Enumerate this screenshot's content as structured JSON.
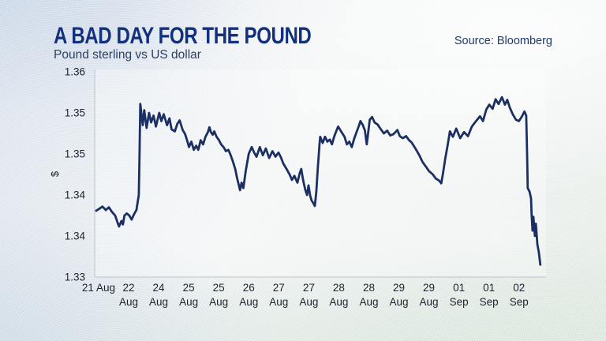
{
  "chart_data": {
    "type": "line",
    "title": "A BAD DAY FOR THE POUND",
    "subtitle": "Pound sterling vs US dollar",
    "source": "Source: Bloomberg",
    "ylabel": "$",
    "xlabel": "",
    "legend": "none",
    "grid": "off",
    "ylim": [
      1.33,
      1.36
    ],
    "xlim": [
      -0.13,
      14.9
    ],
    "y_ticks": [
      {
        "value": 1.36,
        "label": "1.36"
      },
      {
        "value": 1.354,
        "label": "1.35"
      },
      {
        "value": 1.348,
        "label": "1.35"
      },
      {
        "value": 1.342,
        "label": "1.34"
      },
      {
        "value": 1.336,
        "label": "1.34"
      },
      {
        "value": 1.33,
        "label": "1.33"
      }
    ],
    "x_tick_labels": [
      {
        "line1": "21 Aug",
        "line2": ""
      },
      {
        "line1": "22",
        "line2": "Aug"
      },
      {
        "line1": "24",
        "line2": "Aug"
      },
      {
        "line1": "25",
        "line2": "Aug"
      },
      {
        "line1": "25",
        "line2": "Aug"
      },
      {
        "line1": "26",
        "line2": "Aug"
      },
      {
        "line1": "27",
        "line2": "Aug"
      },
      {
        "line1": "27",
        "line2": "Aug"
      },
      {
        "line1": "28",
        "line2": "Aug"
      },
      {
        "line1": "28",
        "line2": "Aug"
      },
      {
        "line1": "29",
        "line2": "Aug"
      },
      {
        "line1": "29",
        "line2": "Aug"
      },
      {
        "line1": "01",
        "line2": "Sep"
      },
      {
        "line1": "01",
        "line2": "Sep"
      },
      {
        "line1": "02",
        "line2": "Sep"
      }
    ],
    "series": [
      {
        "name": "Pound sterling vs US dollar (GBP/USD $)",
        "color": "#1c2f63",
        "points": [
          [
            -0.08,
            1.3397
          ],
          [
            0.03,
            1.34
          ],
          [
            0.13,
            1.3403
          ],
          [
            0.24,
            1.3398
          ],
          [
            0.34,
            1.3402
          ],
          [
            0.45,
            1.3395
          ],
          [
            0.55,
            1.339
          ],
          [
            0.63,
            1.338
          ],
          [
            0.68,
            1.3374
          ],
          [
            0.76,
            1.3382
          ],
          [
            0.81,
            1.3377
          ],
          [
            0.86,
            1.339
          ],
          [
            0.94,
            1.3393
          ],
          [
            1.02,
            1.339
          ],
          [
            1.1,
            1.3384
          ],
          [
            1.18,
            1.3392
          ],
          [
            1.26,
            1.3398
          ],
          [
            1.34,
            1.342
          ],
          [
            1.36,
            1.347
          ],
          [
            1.39,
            1.3553
          ],
          [
            1.47,
            1.3522
          ],
          [
            1.52,
            1.3544
          ],
          [
            1.6,
            1.3518
          ],
          [
            1.68,
            1.354
          ],
          [
            1.75,
            1.3526
          ],
          [
            1.83,
            1.3536
          ],
          [
            1.91,
            1.352
          ],
          [
            2.02,
            1.354
          ],
          [
            2.09,
            1.3528
          ],
          [
            2.17,
            1.3538
          ],
          [
            2.28,
            1.3522
          ],
          [
            2.36,
            1.3532
          ],
          [
            2.43,
            1.3516
          ],
          [
            2.54,
            1.3513
          ],
          [
            2.62,
            1.3524
          ],
          [
            2.7,
            1.3529
          ],
          [
            2.8,
            1.3515
          ],
          [
            2.88,
            1.3509
          ],
          [
            2.96,
            1.3498
          ],
          [
            3.01,
            1.349
          ],
          [
            3.09,
            1.3498
          ],
          [
            3.17,
            1.3486
          ],
          [
            3.25,
            1.3492
          ],
          [
            3.32,
            1.3486
          ],
          [
            3.4,
            1.35
          ],
          [
            3.48,
            1.3494
          ],
          [
            3.56,
            1.3505
          ],
          [
            3.64,
            1.3512
          ],
          [
            3.69,
            1.3519
          ],
          [
            3.74,
            1.3512
          ],
          [
            3.8,
            1.3508
          ],
          [
            3.85,
            1.3513
          ],
          [
            3.93,
            1.3505
          ],
          [
            4.01,
            1.35
          ],
          [
            4.08,
            1.3494
          ],
          [
            4.16,
            1.349
          ],
          [
            4.24,
            1.3484
          ],
          [
            4.32,
            1.3486
          ],
          [
            4.4,
            1.3478
          ],
          [
            4.48,
            1.3468
          ],
          [
            4.55,
            1.3458
          ],
          [
            4.61,
            1.3445
          ],
          [
            4.66,
            1.3436
          ],
          [
            4.71,
            1.3427
          ],
          [
            4.76,
            1.3438
          ],
          [
            4.82,
            1.343
          ],
          [
            4.9,
            1.3455
          ],
          [
            5.0,
            1.348
          ],
          [
            5.1,
            1.349
          ],
          [
            5.18,
            1.3482
          ],
          [
            5.26,
            1.3476
          ],
          [
            5.37,
            1.349
          ],
          [
            5.47,
            1.3478
          ],
          [
            5.57,
            1.3488
          ],
          [
            5.68,
            1.3474
          ],
          [
            5.79,
            1.3484
          ],
          [
            5.89,
            1.3476
          ],
          [
            5.99,
            1.3482
          ],
          [
            6.07,
            1.3475
          ],
          [
            6.15,
            1.3466
          ],
          [
            6.26,
            1.3458
          ],
          [
            6.36,
            1.345
          ],
          [
            6.44,
            1.3442
          ],
          [
            6.52,
            1.3448
          ],
          [
            6.62,
            1.3438
          ],
          [
            6.7,
            1.3452
          ],
          [
            6.75,
            1.3458
          ],
          [
            6.81,
            1.3442
          ],
          [
            6.88,
            1.3428
          ],
          [
            6.94,
            1.342
          ],
          [
            6.99,
            1.3434
          ],
          [
            7.04,
            1.342
          ],
          [
            7.09,
            1.3412
          ],
          [
            7.15,
            1.3408
          ],
          [
            7.2,
            1.3404
          ],
          [
            7.25,
            1.3425
          ],
          [
            7.3,
            1.346
          ],
          [
            7.36,
            1.3495
          ],
          [
            7.38,
            1.3505
          ],
          [
            7.46,
            1.3496
          ],
          [
            7.54,
            1.3505
          ],
          [
            7.62,
            1.3498
          ],
          [
            7.7,
            1.3501
          ],
          [
            7.77,
            1.3494
          ],
          [
            7.85,
            1.3506
          ],
          [
            7.93,
            1.3515
          ],
          [
            7.98,
            1.352
          ],
          [
            8.09,
            1.3512
          ],
          [
            8.19,
            1.3505
          ],
          [
            8.27,
            1.3494
          ],
          [
            8.35,
            1.3498
          ],
          [
            8.43,
            1.349
          ],
          [
            8.51,
            1.3502
          ],
          [
            8.59,
            1.3512
          ],
          [
            8.66,
            1.352
          ],
          [
            8.72,
            1.3528
          ],
          [
            8.8,
            1.3522
          ],
          [
            8.87,
            1.3514
          ],
          [
            8.93,
            1.3494
          ],
          [
            8.98,
            1.3512
          ],
          [
            9.03,
            1.353
          ],
          [
            9.11,
            1.3534
          ],
          [
            9.19,
            1.3526
          ],
          [
            9.29,
            1.3523
          ],
          [
            9.4,
            1.3516
          ],
          [
            9.5,
            1.351
          ],
          [
            9.61,
            1.3514
          ],
          [
            9.71,
            1.3507
          ],
          [
            9.82,
            1.3509
          ],
          [
            9.95,
            1.3515
          ],
          [
            10.03,
            1.3506
          ],
          [
            10.13,
            1.3503
          ],
          [
            10.24,
            1.3506
          ],
          [
            10.34,
            1.35
          ],
          [
            10.42,
            1.3497
          ],
          [
            10.55,
            1.3488
          ],
          [
            10.68,
            1.3478
          ],
          [
            10.79,
            1.3468
          ],
          [
            10.89,
            1.3462
          ],
          [
            11.0,
            1.3455
          ],
          [
            11.13,
            1.345
          ],
          [
            11.23,
            1.3444
          ],
          [
            11.34,
            1.3441
          ],
          [
            11.41,
            1.3437
          ],
          [
            11.47,
            1.3452
          ],
          [
            11.54,
            1.3472
          ],
          [
            11.62,
            1.3492
          ],
          [
            11.7,
            1.3513
          ],
          [
            11.8,
            1.3505
          ],
          [
            11.91,
            1.3517
          ],
          [
            12.04,
            1.3503
          ],
          [
            12.17,
            1.3512
          ],
          [
            12.3,
            1.3506
          ],
          [
            12.43,
            1.352
          ],
          [
            12.57,
            1.3528
          ],
          [
            12.7,
            1.3535
          ],
          [
            12.8,
            1.3528
          ],
          [
            12.91,
            1.3545
          ],
          [
            13.01,
            1.3552
          ],
          [
            13.12,
            1.3546
          ],
          [
            13.22,
            1.356
          ],
          [
            13.32,
            1.3553
          ],
          [
            13.43,
            1.3563
          ],
          [
            13.53,
            1.3552
          ],
          [
            13.61,
            1.3559
          ],
          [
            13.69,
            1.3548
          ],
          [
            13.79,
            1.3538
          ],
          [
            13.9,
            1.353
          ],
          [
            14.0,
            1.3528
          ],
          [
            14.1,
            1.3535
          ],
          [
            14.18,
            1.3542
          ],
          [
            14.24,
            1.3536
          ],
          [
            14.27,
            1.348
          ],
          [
            14.29,
            1.343
          ],
          [
            14.35,
            1.3425
          ],
          [
            14.4,
            1.3415
          ],
          [
            14.42,
            1.3392
          ],
          [
            14.45,
            1.3368
          ],
          [
            14.48,
            1.3388
          ],
          [
            14.53,
            1.336
          ],
          [
            14.56,
            1.3378
          ],
          [
            14.61,
            1.3348
          ],
          [
            14.66,
            1.3336
          ],
          [
            14.71,
            1.3318
          ]
        ]
      }
    ]
  },
  "colors": {
    "title": "#12307e",
    "subtitle": "#2c3e63",
    "source": "#1f3a6e",
    "line": "#1c2f63",
    "axis": "#bcc3cb",
    "tick_text": "#1d232e"
  }
}
